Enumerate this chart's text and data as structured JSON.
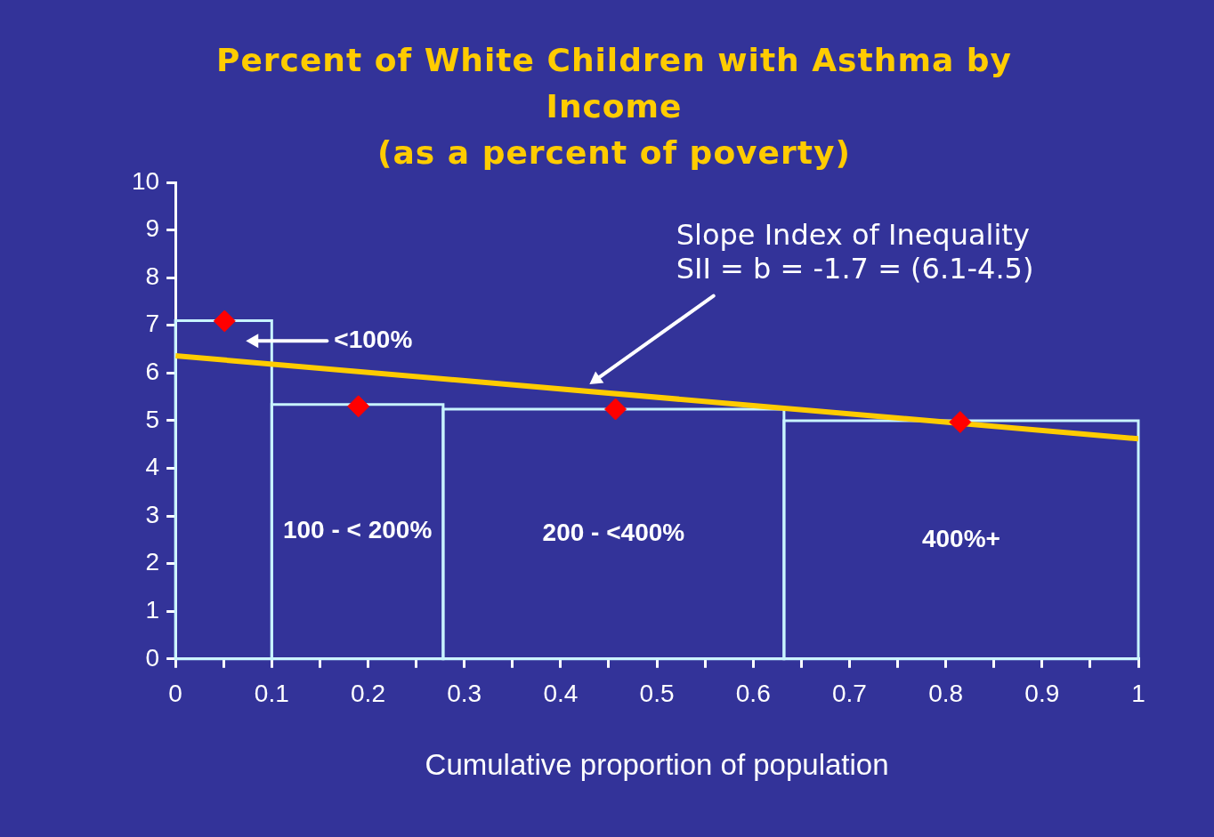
{
  "chart_data": {
    "type": "histogram",
    "title": "Percent of White Children with Asthma by Income",
    "subtitle": "(as a percent of poverty)",
    "xlabel": "Cumulative proportion of population",
    "grid": false,
    "legend": false,
    "xlim": [
      0,
      1
    ],
    "ylim": [
      0,
      10
    ],
    "xticks": [
      0,
      {
        "value": 0.05,
        "label": null
      },
      0.1,
      {
        "value": 0.15,
        "label": null
      },
      0.2,
      {
        "value": 0.25,
        "label": null
      },
      0.3,
      {
        "value": 0.35,
        "label": null
      },
      0.4,
      {
        "value": 0.45,
        "label": null
      },
      0.5,
      {
        "value": 0.55,
        "label": null
      },
      0.6,
      {
        "value": 0.65,
        "label": null
      },
      0.7,
      {
        "value": 0.75,
        "label": null
      },
      0.8,
      {
        "value": 0.85,
        "label": null
      },
      0.9,
      {
        "value": 0.95,
        "label": null
      },
      1
    ],
    "yticks": [
      0,
      1,
      2,
      3,
      4,
      5,
      6,
      7,
      8,
      9,
      10
    ],
    "series": [
      {
        "type": "histogram",
        "bins": [
          0,
          0.1,
          0.278,
          0.632,
          1
        ],
        "values": [
          7.1,
          5.34,
          5.24,
          5.0
        ],
        "color": "#c8f4ff"
      },
      {
        "type": "scatter",
        "x": [
          0.051,
          0.19,
          0.457,
          0.815
        ],
        "values": [
          7.09,
          5.3,
          5.24,
          4.97
        ],
        "color": "#ff0000",
        "marker": "diamond"
      },
      {
        "type": "line",
        "x": [
          0,
          1
        ],
        "values": [
          6.36,
          4.62
        ],
        "color": "#ffcc00",
        "line_style": "solid",
        "marker": "none"
      }
    ],
    "annotations": [
      "<100%",
      "100 - < 200%",
      "200 - <400%",
      "400%+",
      "Slope Index of Inequality SII = b = -1.7 = (6.1-4.5)"
    ]
  }
}
